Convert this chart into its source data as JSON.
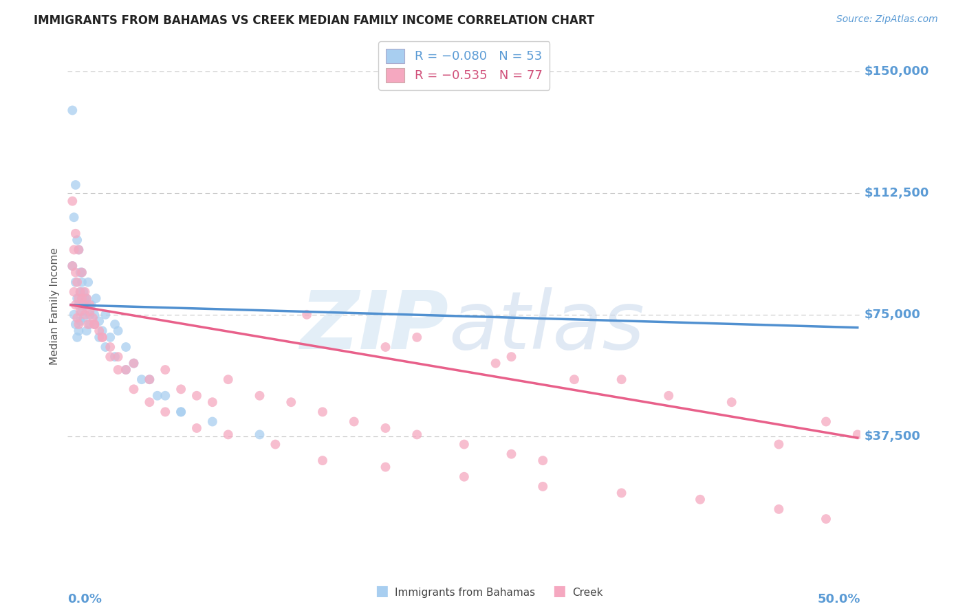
{
  "title": "IMMIGRANTS FROM BAHAMAS VS CREEK MEDIAN FAMILY INCOME CORRELATION CHART",
  "source": "Source: ZipAtlas.com",
  "ylabel": "Median Family Income",
  "x_min": 0.0,
  "x_max": 0.5,
  "y_min": 0,
  "y_max": 155000,
  "yticks": [
    37500,
    75000,
    112500,
    150000
  ],
  "ytick_labels": [
    "$37,500",
    "$75,000",
    "$112,500",
    "$150,000"
  ],
  "blue_color": "#a8cef0",
  "pink_color": "#f5a8c0",
  "pink_line_color": "#e8608a",
  "blue_line_color": "#5090d0",
  "axis_color": "#5b9bd5",
  "title_color": "#222222",
  "grid_color": "#c8c8c8",
  "blue_trend_x": [
    0.0,
    0.5
  ],
  "blue_trend_y": [
    78000,
    71000
  ],
  "pink_trend_x": [
    0.0,
    0.5
  ],
  "pink_trend_y": [
    78000,
    37000
  ],
  "blue_scatter_x": [
    0.001,
    0.002,
    0.003,
    0.003,
    0.004,
    0.004,
    0.005,
    0.005,
    0.006,
    0.006,
    0.007,
    0.007,
    0.008,
    0.009,
    0.01,
    0.01,
    0.011,
    0.012,
    0.013,
    0.015,
    0.016,
    0.018,
    0.02,
    0.022,
    0.025,
    0.028,
    0.03,
    0.035,
    0.04,
    0.05,
    0.06,
    0.07,
    0.001,
    0.002,
    0.003,
    0.004,
    0.005,
    0.006,
    0.007,
    0.008,
    0.009,
    0.01,
    0.012,
    0.015,
    0.018,
    0.022,
    0.028,
    0.035,
    0.045,
    0.055,
    0.07,
    0.09,
    0.12
  ],
  "blue_scatter_y": [
    90000,
    75000,
    85000,
    72000,
    80000,
    68000,
    78000,
    70000,
    82000,
    73000,
    88000,
    76000,
    74000,
    80000,
    78000,
    70000,
    85000,
    72000,
    78000,
    75000,
    80000,
    73000,
    70000,
    75000,
    68000,
    72000,
    70000,
    65000,
    60000,
    55000,
    50000,
    45000,
    138000,
    105000,
    115000,
    98000,
    95000,
    88000,
    85000,
    82000,
    78000,
    80000,
    75000,
    72000,
    68000,
    65000,
    62000,
    58000,
    55000,
    50000,
    45000,
    42000,
    38000
  ],
  "pink_scatter_x": [
    0.001,
    0.002,
    0.002,
    0.003,
    0.003,
    0.004,
    0.004,
    0.005,
    0.005,
    0.006,
    0.006,
    0.007,
    0.008,
    0.009,
    0.01,
    0.011,
    0.012,
    0.014,
    0.015,
    0.018,
    0.02,
    0.025,
    0.03,
    0.035,
    0.04,
    0.05,
    0.06,
    0.07,
    0.08,
    0.09,
    0.1,
    0.12,
    0.14,
    0.16,
    0.18,
    0.2,
    0.22,
    0.25,
    0.28,
    0.3,
    0.001,
    0.003,
    0.005,
    0.007,
    0.009,
    0.012,
    0.015,
    0.02,
    0.025,
    0.03,
    0.04,
    0.05,
    0.06,
    0.08,
    0.1,
    0.13,
    0.16,
    0.2,
    0.25,
    0.3,
    0.35,
    0.4,
    0.45,
    0.48,
    0.15,
    0.22,
    0.28,
    0.35,
    0.42,
    0.48,
    0.5,
    0.45,
    0.38,
    0.32,
    0.27,
    0.2
  ],
  "pink_scatter_y": [
    90000,
    95000,
    82000,
    88000,
    78000,
    85000,
    74000,
    80000,
    72000,
    82000,
    76000,
    80000,
    78000,
    75000,
    80000,
    72000,
    76000,
    74000,
    72000,
    70000,
    68000,
    65000,
    62000,
    58000,
    60000,
    55000,
    58000,
    52000,
    50000,
    48000,
    55000,
    50000,
    48000,
    45000,
    42000,
    40000,
    38000,
    35000,
    32000,
    30000,
    110000,
    100000,
    95000,
    88000,
    82000,
    78000,
    72000,
    68000,
    62000,
    58000,
    52000,
    48000,
    45000,
    40000,
    38000,
    35000,
    30000,
    28000,
    25000,
    22000,
    20000,
    18000,
    15000,
    12000,
    75000,
    68000,
    62000,
    55000,
    48000,
    42000,
    38000,
    35000,
    50000,
    55000,
    60000,
    65000
  ]
}
